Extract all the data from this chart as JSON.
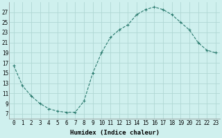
{
  "x": [
    0,
    1,
    2,
    3,
    4,
    5,
    6,
    7,
    8,
    9,
    10,
    11,
    12,
    13,
    14,
    15,
    16,
    17,
    18,
    19,
    20,
    21,
    22,
    23
  ],
  "y": [
    16.5,
    12.5,
    10.5,
    9.0,
    8.0,
    7.5,
    7.3,
    7.3,
    9.5,
    15.0,
    19.0,
    22.0,
    23.5,
    24.5,
    26.5,
    27.5,
    28.0,
    27.5,
    26.5,
    25.0,
    23.5,
    21.0,
    19.5,
    19.0
  ],
  "line_color": "#2a7a6e",
  "marker": "+",
  "bg_color": "#cff0ee",
  "grid_color": "#b0d8d4",
  "xlabel": "Humidex (Indice chaleur)",
  "xlim": [
    -0.5,
    23.5
  ],
  "ylim": [
    6,
    29
  ],
  "yticks": [
    7,
    9,
    11,
    13,
    15,
    17,
    19,
    21,
    23,
    25,
    27
  ],
  "xticks": [
    0,
    1,
    2,
    3,
    4,
    5,
    6,
    7,
    8,
    9,
    10,
    11,
    12,
    13,
    14,
    15,
    16,
    17,
    18,
    19,
    20,
    21,
    22,
    23
  ],
  "label_fontsize": 6.5,
  "tick_fontsize": 5.5
}
